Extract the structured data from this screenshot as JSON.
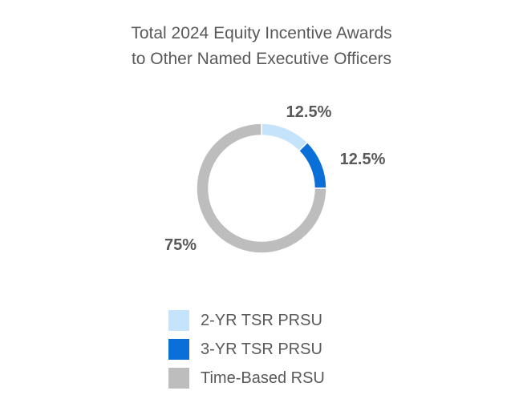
{
  "chart_data": {
    "type": "pie",
    "style": "donut",
    "title_lines": [
      "Total 2024 Equity Incentive Awards",
      "to Other Named Executive Officers"
    ],
    "series": [
      {
        "name": "2-YR TSR PRSU",
        "value": 12.5,
        "label": "12.5%",
        "color": "#c5e4fb"
      },
      {
        "name": "3-YR TSR PRSU",
        "value": 12.5,
        "label": "12.5%",
        "color": "#0a6fd6"
      },
      {
        "name": "Time-Based RSU",
        "value": 75,
        "label": "75%",
        "color": "#bdbdbd"
      }
    ],
    "legend_position": "bottom"
  }
}
